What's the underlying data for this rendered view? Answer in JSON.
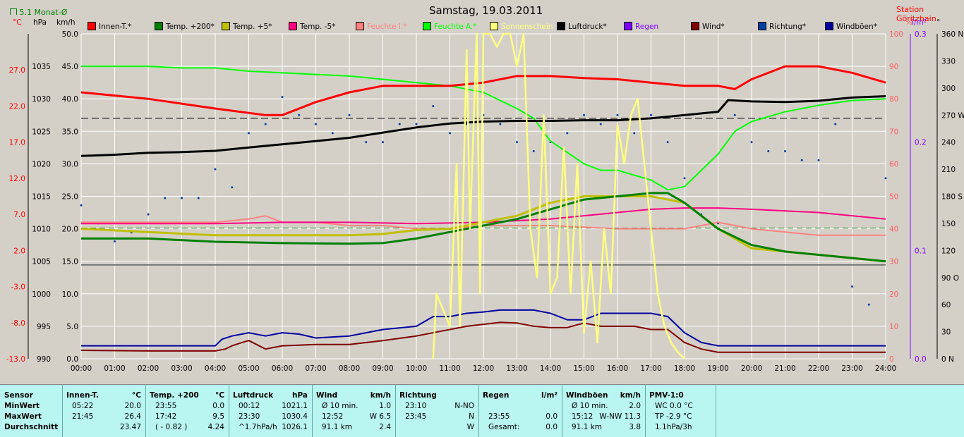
{
  "header": {
    "title": "Samstag, 19.03.2011",
    "station": "Station Göritzhain",
    "month_avg_label": "5.1 Monat-Ø"
  },
  "axis_units": {
    "c": "°C",
    "hpa": "hPa",
    "kmh": "km/h",
    "pct": "%",
    "lm2": "l/m²",
    "deg": "°"
  },
  "legend": [
    {
      "name": "Innen-T.*",
      "color": "#ff0000"
    },
    {
      "name": "Temp. +200*",
      "color": "#008000"
    },
    {
      "name": "Temp. +5*",
      "color": "#c0c000"
    },
    {
      "name": "Temp. -5*",
      "color": "#ff0080"
    },
    {
      "name": "Feuchte I.*",
      "color": "#ff8080"
    },
    {
      "name": "Feuchte A.*",
      "color": "#00ff00"
    },
    {
      "name": "Sonnenschein",
      "color": "#ffff80"
    },
    {
      "name": "Luftdruck*",
      "color": "#000000"
    },
    {
      "name": "Regen",
      "color": "#8000ff"
    },
    {
      "name": "Wind*",
      "color": "#800000"
    },
    {
      "name": "Richtung*",
      "color": "#0040a0"
    },
    {
      "name": "Windböen*",
      "color": "#0000a0"
    }
  ],
  "chart_data": {
    "type": "line",
    "x_ticks": [
      "00:00",
      "01:00",
      "02:00",
      "03:00",
      "04:00",
      "05:00",
      "06:00",
      "07:00",
      "08:00",
      "09:00",
      "10:00",
      "11:00",
      "12:00",
      "13:00",
      "14:00",
      "15:00",
      "16:00",
      "17:00",
      "18:00",
      "19:00",
      "20:00",
      "21:00",
      "22:00",
      "23:00",
      "24:00"
    ],
    "axes": {
      "temp_c": {
        "ticks": [
          "27.0",
          "22.0",
          "17.0",
          "12.0",
          "7.0",
          "2.0",
          "-3.0",
          "-8.0",
          "-13.0"
        ],
        "range": [
          -13,
          32
        ]
      },
      "pressure_hpa": {
        "ticks": [
          "1035",
          "1030",
          "1025",
          "1020",
          "1015",
          "1010",
          "1005",
          "1000",
          "995",
          "990"
        ],
        "range": [
          990,
          1040
        ]
      },
      "wind_kmh": {
        "ticks": [
          "50.0",
          "45.0",
          "40.0",
          "35.0",
          "30.0",
          "25.0",
          "20.0",
          "15.0",
          "10.0",
          "5.0",
          "0.0"
        ],
        "range": [
          0,
          50
        ]
      },
      "humidity_pct": {
        "ticks": [
          "100",
          "90",
          "80",
          "70",
          "60",
          "50",
          "40",
          "30",
          "20",
          "10",
          "0"
        ],
        "range": [
          0,
          100
        ]
      },
      "rain_lm2": {
        "ticks": [
          "0.3",
          "0.2",
          "0.1",
          "0.0"
        ],
        "range": [
          0,
          0.3
        ]
      },
      "direction_deg": {
        "ticks": [
          "360 N",
          "330",
          "300",
          "270 W",
          "240",
          "210",
          "180 S",
          "150",
          "120",
          "90 O",
          "60",
          "30",
          "0 N"
        ],
        "range": [
          0,
          360
        ]
      }
    },
    "reference_lines": {
      "temp_zero_c": 0,
      "month_avg_c": 5.1,
      "pressure_ref_hpa": 1027
    },
    "series": [
      {
        "name": "Innen-T.",
        "axis": "wind_kmh",
        "x": [
          0,
          2,
          4,
          5.5,
          6,
          7,
          8,
          9,
          10,
          11,
          12,
          13,
          14,
          15,
          16,
          17,
          18,
          19,
          19.5,
          20,
          21,
          22,
          23,
          24
        ],
        "y": [
          41,
          40,
          38.5,
          37.5,
          37.5,
          39.5,
          41,
          42,
          42,
          42,
          42.5,
          43.5,
          43.5,
          43.2,
          43,
          42.5,
          42,
          42,
          41.5,
          43,
          45,
          45,
          44,
          42.5
        ]
      },
      {
        "name": "Temp. +200",
        "axis": "wind_kmh",
        "x": [
          0,
          2,
          4,
          6,
          8,
          9,
          10,
          11,
          12,
          13,
          14,
          15,
          16,
          17,
          17.5,
          18,
          19,
          20,
          21,
          22,
          23,
          24
        ],
        "y": [
          18.5,
          18.5,
          18,
          17.8,
          17.7,
          17.8,
          18.5,
          19.5,
          20.5,
          21.5,
          23,
          24.5,
          25,
          25.5,
          25.5,
          24,
          20,
          17.5,
          16.5,
          16,
          15.5,
          15
        ]
      },
      {
        "name": "Temp. +5",
        "axis": "wind_kmh",
        "x": [
          0,
          2,
          4,
          6,
          8,
          9,
          10,
          11,
          12,
          13,
          14,
          15,
          16,
          17,
          18,
          19,
          20,
          21,
          22,
          23,
          24
        ],
        "y": [
          20,
          19.5,
          19,
          19,
          19,
          19.2,
          19.8,
          20,
          21,
          22,
          24,
          25,
          25,
          25,
          24,
          20,
          17,
          16.5,
          16,
          15.5,
          15
        ]
      },
      {
        "name": "Temp. -5",
        "axis": "wind_kmh",
        "x": [
          0,
          2,
          4,
          6,
          8,
          10,
          12,
          14,
          16,
          17,
          18,
          19,
          20,
          22,
          24
        ],
        "y": [
          20.8,
          20.8,
          20.8,
          21,
          21,
          20.8,
          21,
          21.5,
          22.5,
          23,
          23.2,
          23.2,
          23,
          22.5,
          21.5
        ]
      },
      {
        "name": "Feuchte I.",
        "axis": "humidity_pct",
        "x": [
          0,
          2,
          4,
          5,
          5.5,
          6,
          7,
          8,
          9,
          10,
          11,
          12,
          13,
          14,
          15,
          16,
          17,
          18,
          19,
          20,
          22,
          24
        ],
        "y": [
          42,
          42,
          42,
          43,
          44,
          42,
          42,
          41,
          41,
          40,
          40,
          41,
          41,
          41,
          40.5,
          40,
          40,
          40,
          42,
          40,
          38,
          38
        ]
      },
      {
        "name": "Feuchte A.",
        "axis": "humidity_pct",
        "x": [
          0,
          1,
          2,
          3,
          4,
          5,
          6,
          7,
          8,
          9,
          10,
          11,
          12,
          13,
          13.5,
          14,
          15,
          15.5,
          16,
          17,
          17.5,
          18,
          19,
          19.5,
          20,
          21,
          22,
          23,
          24
        ],
        "y": [
          90,
          90,
          90,
          89.5,
          89.5,
          88.5,
          88,
          87.5,
          87,
          86,
          85,
          84,
          82,
          77,
          74,
          67,
          60,
          58,
          58,
          55,
          52,
          53,
          63,
          70,
          73,
          76,
          78,
          79.5,
          80
        ]
      },
      {
        "name": "Sonnenschein",
        "axis": "humidity_pct",
        "x": [
          10.5,
          10.6,
          10.8,
          11,
          11.2,
          11.3,
          11.5,
          11.6,
          11.8,
          11.9,
          12,
          12.2,
          12.4,
          12.6,
          12.8,
          13,
          13.2,
          13.4,
          13.6,
          13.8,
          14,
          14.2,
          14.4,
          14.6,
          14.8,
          15,
          15.2,
          15.4,
          15.6,
          15.8,
          16,
          16.2,
          16.4,
          16.6,
          16.8,
          17,
          17.2,
          17.4,
          17.6,
          17.8,
          18
        ],
        "y": [
          0,
          20,
          15,
          10,
          60,
          10,
          95,
          40,
          100,
          20,
          100,
          100,
          96,
          100,
          100,
          90,
          100,
          40,
          25,
          75,
          20,
          25,
          65,
          20,
          60,
          8,
          30,
          5,
          40,
          20,
          72,
          60,
          75,
          80,
          60,
          40,
          20,
          10,
          5,
          2,
          0
        ]
      },
      {
        "name": "Luftdruck",
        "axis": "pressure_hpa",
        "x": [
          0,
          1,
          2,
          3,
          4,
          5,
          6,
          7,
          8,
          9,
          10,
          11,
          12,
          13,
          14,
          15,
          16,
          17,
          18,
          19,
          19.3,
          20,
          21,
          22,
          23,
          24
        ],
        "y": [
          1021.2,
          1021.4,
          1021.7,
          1021.8,
          1022,
          1022.5,
          1023,
          1023.5,
          1024,
          1024.8,
          1025.6,
          1026.2,
          1026.5,
          1026.6,
          1026.6,
          1026.7,
          1026.7,
          1027,
          1027.5,
          1028,
          1029.8,
          1029.6,
          1029.5,
          1029.7,
          1030.2,
          1030.4
        ]
      },
      {
        "name": "Wind",
        "axis": "wind_kmh",
        "x": [
          0,
          2,
          4,
          4.3,
          4.5,
          4.8,
          5,
          5.5,
          6,
          7,
          8,
          9,
          10,
          11,
          11.5,
          12,
          12.5,
          13,
          13.5,
          14,
          14.5,
          15,
          15.5,
          16,
          16.5,
          17,
          17.5,
          18,
          18.5,
          19,
          20,
          22,
          24
        ],
        "y": [
          1.3,
          1.2,
          1.2,
          1.5,
          2,
          2.5,
          2.8,
          1.5,
          2,
          2.2,
          2.2,
          2.8,
          3.5,
          4.5,
          5,
          5.3,
          5.6,
          5.5,
          5,
          4.8,
          4.8,
          5.5,
          5,
          5,
          5,
          4.5,
          4.5,
          2.5,
          1.5,
          1,
          1,
          1,
          1
        ]
      },
      {
        "name": "Windböen",
        "axis": "wind_kmh",
        "x": [
          0,
          2,
          4,
          4.2,
          4.5,
          5,
          5.5,
          6,
          6.5,
          7,
          8,
          9,
          10,
          10.5,
          11,
          11.5,
          12,
          12.5,
          13,
          13.5,
          14,
          14.5,
          15,
          15.5,
          16,
          16.5,
          17,
          17.5,
          18,
          18.5,
          19,
          20,
          22,
          24
        ],
        "y": [
          2,
          2,
          2,
          3,
          3.5,
          4,
          3.5,
          4,
          3.8,
          3.2,
          3.5,
          4.5,
          5,
          6.5,
          6.5,
          7,
          7.2,
          7.5,
          7.5,
          7.5,
          7,
          6,
          6,
          7,
          7,
          7,
          7,
          6.5,
          4,
          2.5,
          2,
          2,
          2,
          2
        ]
      },
      {
        "name": "Richtung",
        "axis": "direction_deg",
        "style": "dots",
        "x": [
          0,
          0.5,
          1,
          1.5,
          2,
          2.5,
          3,
          3.5,
          4,
          4.5,
          5,
          5.5,
          6,
          6.5,
          7,
          7.5,
          8,
          8.5,
          9,
          9.5,
          10,
          10.5,
          11,
          11.5,
          12,
          12.5,
          13,
          13.5,
          14,
          14.5,
          15,
          15.5,
          16,
          16.5,
          17,
          17.5,
          18,
          18.5,
          19,
          19.5,
          20,
          20.5,
          21,
          21.5,
          22,
          22.5,
          23,
          23.5,
          24
        ],
        "y": [
          170,
          150,
          130,
          140,
          160,
          178,
          178,
          178,
          210,
          190,
          250,
          260,
          290,
          270,
          260,
          250,
          270,
          240,
          240,
          260,
          260,
          280,
          250,
          260,
          270,
          260,
          240,
          230,
          240,
          250,
          270,
          260,
          270,
          250,
          270,
          240,
          200,
          160,
          150,
          270,
          240,
          230,
          230,
          220,
          220,
          260,
          80,
          60,
          200
        ]
      }
    ]
  },
  "stats": {
    "sensor": {
      "h": "Sensor",
      "rows": [
        "MinWert",
        "MaxWert",
        "Durchschnitt"
      ]
    },
    "innen": {
      "h": "Innen-T.",
      "u": "°C",
      "rows": [
        [
          "05:22",
          "20.0"
        ],
        [
          "21:45",
          "26.4"
        ],
        [
          "",
          "23.47"
        ]
      ]
    },
    "temp200": {
      "h": "Temp. +200",
      "u": "°C",
      "rows": [
        [
          "23:55",
          "0.0"
        ],
        [
          "17:42",
          "9.5"
        ],
        [
          "( - 0.82 )",
          "4.24"
        ]
      ]
    },
    "luftdruck": {
      "h": "Luftdruck",
      "u": "hPa",
      "rows": [
        [
          "00:12",
          "1021.1"
        ],
        [
          "23:30",
          "1030.4"
        ],
        [
          "^1.7hPa/h",
          "1026.1"
        ]
      ]
    },
    "wind": {
      "h": "Wind",
      "u": "km/h",
      "rows": [
        [
          "Ø 10 min.",
          "1.0"
        ],
        [
          "12:52",
          "W 6.5"
        ],
        [
          "91.1 km",
          "2.4"
        ]
      ]
    },
    "richtung": {
      "h": "Richtung",
      "u": "",
      "rows": [
        [
          "23:10",
          "N-NO"
        ],
        [
          "23:45",
          "N"
        ],
        [
          "",
          "W"
        ]
      ]
    },
    "regen": {
      "h": "Regen",
      "u": "l/m²",
      "rows": [
        [
          "",
          ""
        ],
        [
          "23:55",
          "0.0"
        ],
        [
          "Gesamt:",
          "0.0"
        ]
      ]
    },
    "boeen": {
      "h": "Windböen",
      "u": "km/h",
      "rows": [
        [
          "Ø 10 min.",
          "2.0"
        ],
        [
          "15:12",
          "W-NW 11.3"
        ],
        [
          "91.1 km",
          "3.8"
        ]
      ]
    },
    "pmv": {
      "h": "PMV-1:0",
      "u": "",
      "rows": [
        [
          "WC 0.0 °C",
          ""
        ],
        [
          "TP -2.9 °C",
          ""
        ],
        [
          "1.1hPa/3h",
          ""
        ]
      ]
    }
  }
}
